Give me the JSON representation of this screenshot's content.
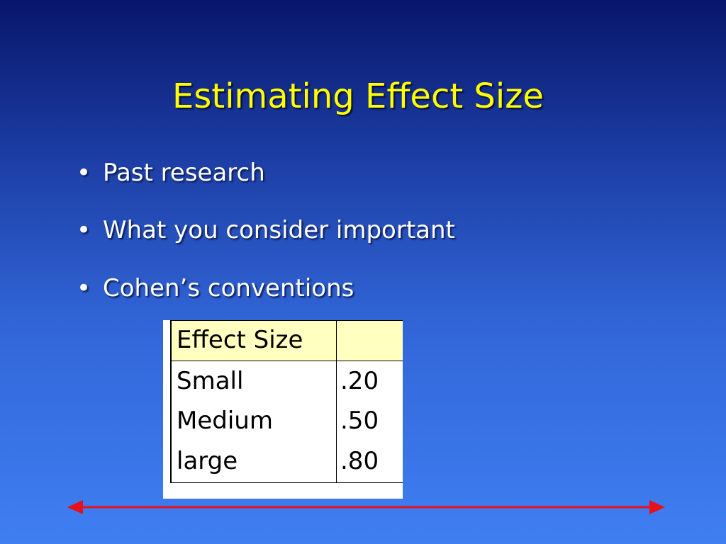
{
  "title": "Estimating Effect Size",
  "bullets": [
    "Past research",
    "What you consider important",
    "Cohen’s conventions"
  ],
  "table": {
    "header": [
      "Effect Size"
    ],
    "rows": [
      [
        "Small",
        ".20"
      ],
      [
        "Medium",
        ".50"
      ],
      [
        "large",
        ".80"
      ]
    ]
  }
}
